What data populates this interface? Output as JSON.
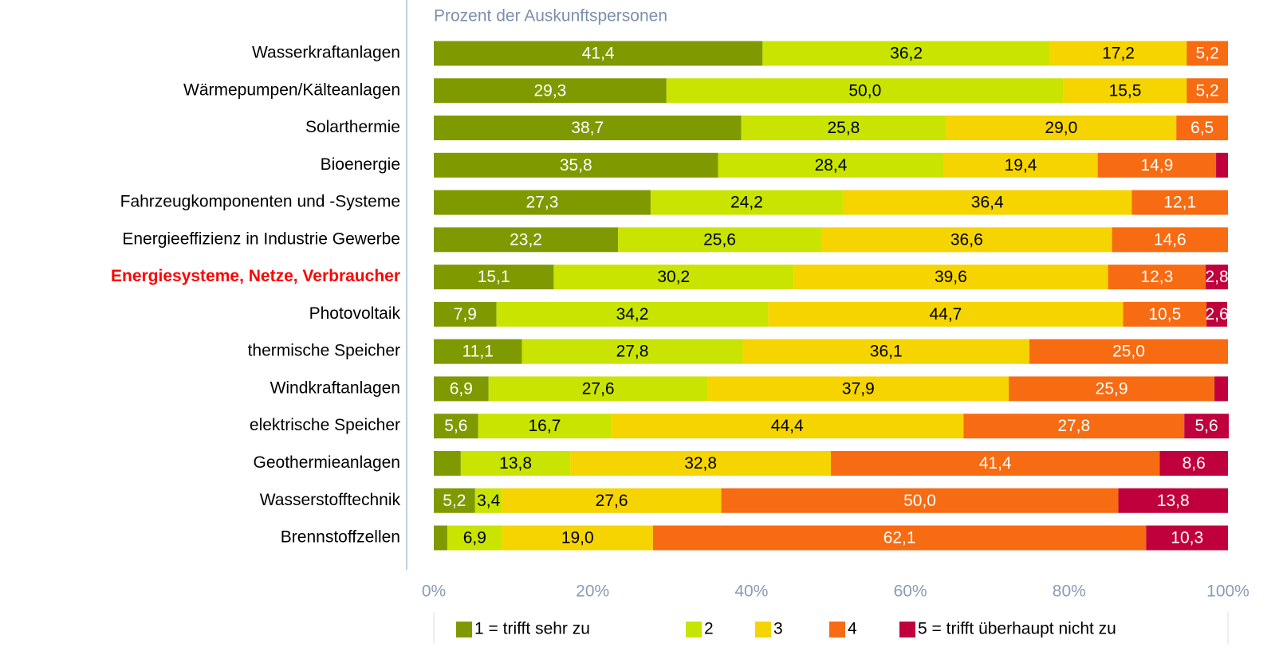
{
  "chart_data": {
    "type": "stacked_bar_horizontal",
    "title": "Prozent der Auskunftspersonen",
    "categories": [
      "Wasserkraftanlagen",
      "Wärmepumpen/Kälteanlagen",
      "Solarthermie",
      "Bioenergie",
      "Fahrzeugkomponenten und -Systeme",
      "Energieeffizienz in Industrie Gewerbe",
      "Energiesysteme, Netze, Verbraucher",
      "Photovoltaik",
      "thermische Speicher",
      "Windkraftanlagen",
      "elektrische Speicher",
      "Geothermieanlagen",
      "Wasserstofftechnik",
      "Brennstoffzellen"
    ],
    "highlight": {
      "index": 6,
      "color": "#ff0000"
    },
    "series": [
      {
        "name": "1 = trifft sehr zu",
        "color": "#7f9a00",
        "label_color": "#ffffff",
        "values": [
          41.4,
          29.3,
          38.7,
          35.8,
          27.3,
          23.2,
          15.1,
          7.9,
          11.1,
          6.9,
          5.6,
          3.4,
          5.2,
          1.7
        ],
        "value_labels": [
          "41,4",
          "29,3",
          "38,7",
          "35,8",
          "27,3",
          "23,2",
          "15,1",
          "7,9",
          "11,1",
          "6,9",
          "5,6",
          null,
          "5,2",
          null
        ]
      },
      {
        "name": "2",
        "color": "#c8e400",
        "label_color": "#000000",
        "values": [
          36.2,
          50.0,
          25.8,
          28.4,
          24.2,
          25.6,
          30.2,
          34.2,
          27.8,
          27.6,
          16.7,
          13.8,
          3.4,
          6.9
        ],
        "value_labels": [
          "36,2",
          "50,0",
          "25,8",
          "28,4",
          "24,2",
          "25,6",
          "30,2",
          "34,2",
          "27,8",
          "27,6",
          "16,7",
          "13,8",
          "3,4",
          "6,9"
        ]
      },
      {
        "name": "3",
        "color": "#f5d400",
        "label_color": "#000000",
        "values": [
          17.2,
          15.5,
          29.0,
          19.4,
          36.4,
          36.6,
          39.6,
          44.7,
          36.1,
          37.9,
          44.4,
          32.8,
          27.6,
          19.0
        ],
        "value_labels": [
          "17,2",
          "15,5",
          "29,0",
          "19,4",
          "36,4",
          "36,6",
          "39,6",
          "44,7",
          "36,1",
          "37,9",
          "44,4",
          "32,8",
          "27,6",
          "19,0"
        ]
      },
      {
        "name": "4",
        "color": "#f76b12",
        "label_color": "#ffffff",
        "values": [
          5.2,
          5.2,
          6.5,
          14.9,
          12.1,
          14.6,
          12.3,
          10.5,
          25.0,
          25.9,
          27.8,
          41.4,
          50.0,
          62.1
        ],
        "value_labels": [
          "5,2",
          "5,2",
          "6,5",
          "14,9",
          "12,1",
          "14,6",
          "12,3",
          "10,5",
          "25,0",
          "25,9",
          "27,8",
          "41,4",
          "50,0",
          "62,1"
        ]
      },
      {
        "name": "5 = trifft überhaupt nicht zu",
        "color": "#c0003c",
        "label_color": "#ffffff",
        "values": [
          0,
          0,
          0,
          1.5,
          0,
          0,
          2.8,
          2.6,
          0,
          1.7,
          5.6,
          8.6,
          13.8,
          10.3
        ],
        "value_labels": [
          null,
          null,
          null,
          null,
          null,
          null,
          "2,8",
          "2,6",
          null,
          null,
          "5,6",
          "8,6",
          "13,8",
          "10,3"
        ]
      }
    ],
    "xlim": [
      0,
      100
    ],
    "xticks": [
      {
        "value": 0,
        "label": "0%"
      },
      {
        "value": 20,
        "label": "20%"
      },
      {
        "value": 40,
        "label": "40%"
      },
      {
        "value": 60,
        "label": "60%"
      },
      {
        "value": 80,
        "label": "80%"
      },
      {
        "value": 100,
        "label": "100%"
      }
    ]
  }
}
